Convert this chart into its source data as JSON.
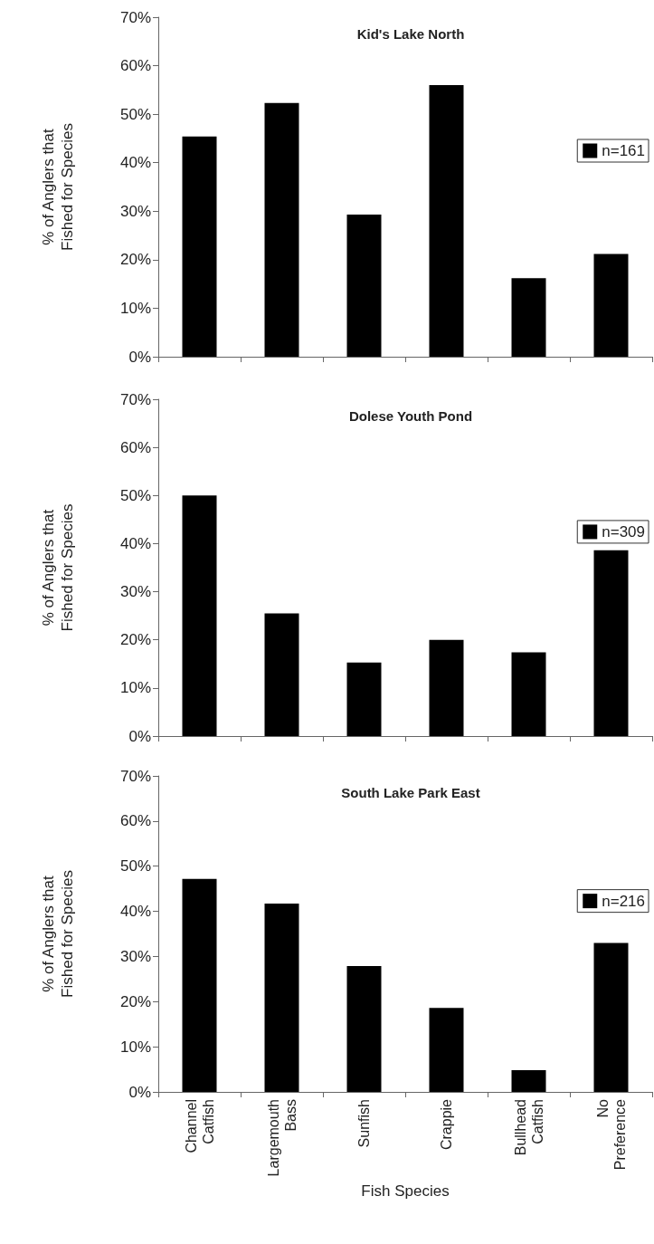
{
  "chart_data": [
    {
      "type": "bar",
      "title": "Kid's Lake North",
      "ylabel": "% of Anglers that Fished for Species",
      "categories": [
        null,
        null,
        null,
        null,
        null,
        null
      ],
      "series": [
        {
          "name": "n=161",
          "color": "#000000",
          "values": [
            45.4,
            52.3,
            29.3,
            56,
            16.2,
            21.2
          ]
        }
      ],
      "ylim": [
        0,
        70
      ],
      "yticks": [
        {
          "value": 0,
          "label": "0%"
        },
        {
          "value": 10,
          "label": "10%"
        },
        {
          "value": 20,
          "label": "20%"
        },
        {
          "value": 30,
          "label": "30%"
        },
        {
          "value": 40,
          "label": "40%"
        },
        {
          "value": 50,
          "label": "50%"
        },
        {
          "value": 60,
          "label": "60%"
        },
        {
          "value": 70,
          "label": "70%"
        }
      ],
      "legend": "right",
      "tick_labels": "y",
      "grid": false
    },
    {
      "type": "bar",
      "title": "Dolese Youth Pond",
      "ylabel": "% of Anglers that Fished for Species",
      "categories": [
        null,
        null,
        null,
        null,
        null,
        null
      ],
      "series": [
        {
          "name": "n=309",
          "color": "#000000",
          "values": [
            50,
            25.5,
            15.3,
            20,
            17.4,
            38.6
          ]
        }
      ],
      "ylim": [
        0,
        70
      ],
      "yticks": [
        {
          "value": 0,
          "label": "0%"
        },
        {
          "value": 10,
          "label": "10%"
        },
        {
          "value": 20,
          "label": "20%"
        },
        {
          "value": 30,
          "label": "30%"
        },
        {
          "value": 40,
          "label": "40%"
        },
        {
          "value": 50,
          "label": "50%"
        },
        {
          "value": 60,
          "label": "60%"
        },
        {
          "value": 70,
          "label": "70%"
        }
      ],
      "legend": "right",
      "tick_labels": "y",
      "grid": false
    },
    {
      "type": "bar",
      "title": "South Lake Park East",
      "xlabel": "Fish Species",
      "ylabel": "% of Anglers that Fished for Species",
      "categories": [
        "Channel Catfish",
        "Largemouth Bass",
        "Sunfish",
        "Crappie",
        "Bullhead Catfish",
        "No Preference"
      ],
      "series": [
        {
          "name": "n=216",
          "color": "#000000",
          "values": [
            47.2,
            41.7,
            27.9,
            18.6,
            4.8,
            33
          ]
        }
      ],
      "ylim": [
        0,
        70
      ],
      "yticks": [
        {
          "value": 0,
          "label": "0%"
        },
        {
          "value": 10,
          "label": "10%"
        },
        {
          "value": 20,
          "label": "20%"
        },
        {
          "value": 30,
          "label": "30%"
        },
        {
          "value": 40,
          "label": "40%"
        },
        {
          "value": 50,
          "label": "50%"
        },
        {
          "value": 60,
          "label": "60%"
        },
        {
          "value": 70,
          "label": "70%"
        }
      ],
      "legend": "right",
      "grid": false
    }
  ]
}
